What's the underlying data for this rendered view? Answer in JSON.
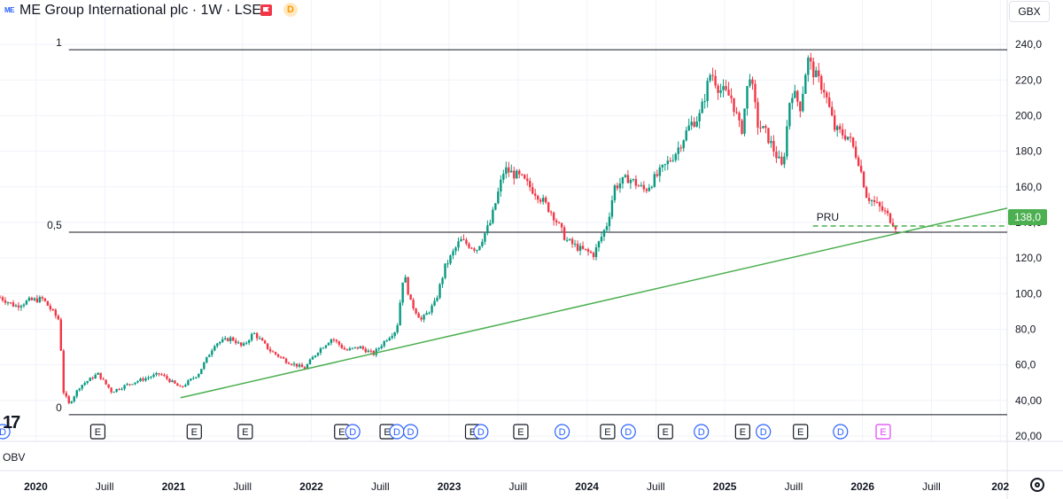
{
  "header": {
    "logo_text": "ME",
    "title": "ME Group International plc · 1W · LSE",
    "dividend_badge": "D",
    "currency": "GBX"
  },
  "indicator_label": "OBV",
  "current_price_label": "138,0",
  "colors": {
    "up": "#089981",
    "down": "#f23645",
    "trendline": "#4caf50",
    "grid": "#f0f3fa",
    "fib_line": "#131722",
    "earnings_marker": "#131722",
    "dividend_marker": "#2962ff",
    "future_earnings": "#e040fb"
  },
  "chart_data": {
    "type": "candlestick",
    "title": "ME Group International plc · 1W · LSE",
    "y_axis": {
      "ticks": [
        240,
        220,
        200,
        180,
        160,
        140,
        120,
        100,
        80,
        60,
        40,
        20
      ],
      "tick_labels": [
        "240,0",
        "220,0",
        "200,0",
        "180,0",
        "160,0",
        "140,0",
        "120,0",
        "100,0",
        "80,0",
        "60,0",
        "40,00",
        "20,00"
      ],
      "ylim": [
        17,
        251
      ]
    },
    "x_axis": {
      "tick_labels": [
        "2020",
        "Juill",
        "2021",
        "Juill",
        "2022",
        "Juill",
        "2023",
        "Juill",
        "2024",
        "Juill",
        "2025",
        "Juill",
        "2026",
        "Juill",
        "202"
      ],
      "tick_dates": [
        2020.0,
        2020.5,
        2021.0,
        2021.5,
        2022.0,
        2022.5,
        2023.0,
        2023.5,
        2024.0,
        2024.5,
        2025.0,
        2025.5,
        2026.0,
        2026.5,
        2027.0
      ],
      "xlim": [
        2019.74,
        2027.05
      ]
    },
    "price_path": [
      {
        "t": 2019.74,
        "p": 98
      },
      {
        "t": 2019.85,
        "p": 93
      },
      {
        "t": 2019.95,
        "p": 96
      },
      {
        "t": 2020.05,
        "p": 97
      },
      {
        "t": 2020.12,
        "p": 90
      },
      {
        "t": 2020.17,
        "p": 85
      },
      {
        "t": 2020.2,
        "p": 45
      },
      {
        "t": 2020.24,
        "p": 38
      },
      {
        "t": 2020.32,
        "p": 48
      },
      {
        "t": 2020.45,
        "p": 55
      },
      {
        "t": 2020.55,
        "p": 45
      },
      {
        "t": 2020.7,
        "p": 50
      },
      {
        "t": 2020.9,
        "p": 55
      },
      {
        "t": 2021.05,
        "p": 47
      },
      {
        "t": 2021.18,
        "p": 55
      },
      {
        "t": 2021.3,
        "p": 72
      },
      {
        "t": 2021.42,
        "p": 75
      },
      {
        "t": 2021.5,
        "p": 70
      },
      {
        "t": 2021.58,
        "p": 78
      },
      {
        "t": 2021.7,
        "p": 68
      },
      {
        "t": 2021.82,
        "p": 62
      },
      {
        "t": 2021.95,
        "p": 58
      },
      {
        "t": 2022.05,
        "p": 68
      },
      {
        "t": 2022.15,
        "p": 75
      },
      {
        "t": 2022.25,
        "p": 68
      },
      {
        "t": 2022.35,
        "p": 70
      },
      {
        "t": 2022.45,
        "p": 66
      },
      {
        "t": 2022.55,
        "p": 75
      },
      {
        "t": 2022.62,
        "p": 80
      },
      {
        "t": 2022.67,
        "p": 112
      },
      {
        "t": 2022.72,
        "p": 95
      },
      {
        "t": 2022.8,
        "p": 85
      },
      {
        "t": 2022.9,
        "p": 95
      },
      {
        "t": 2022.97,
        "p": 115
      },
      {
        "t": 2023.08,
        "p": 130
      },
      {
        "t": 2023.2,
        "p": 125
      },
      {
        "t": 2023.3,
        "p": 140
      },
      {
        "t": 2023.4,
        "p": 170
      },
      {
        "t": 2023.52,
        "p": 165
      },
      {
        "t": 2023.65,
        "p": 155
      },
      {
        "t": 2023.75,
        "p": 145
      },
      {
        "t": 2023.85,
        "p": 130
      },
      {
        "t": 2023.95,
        "p": 125
      },
      {
        "t": 2024.05,
        "p": 122
      },
      {
        "t": 2024.15,
        "p": 140
      },
      {
        "t": 2024.2,
        "p": 160
      },
      {
        "t": 2024.3,
        "p": 165
      },
      {
        "t": 2024.42,
        "p": 158
      },
      {
        "t": 2024.55,
        "p": 170
      },
      {
        "t": 2024.65,
        "p": 180
      },
      {
        "t": 2024.75,
        "p": 195
      },
      {
        "t": 2024.82,
        "p": 200
      },
      {
        "t": 2024.9,
        "p": 225
      },
      {
        "t": 2024.96,
        "p": 215
      },
      {
        "t": 2025.05,
        "p": 210
      },
      {
        "t": 2025.12,
        "p": 190
      },
      {
        "t": 2025.18,
        "p": 225
      },
      {
        "t": 2025.24,
        "p": 195
      },
      {
        "t": 2025.3,
        "p": 190
      },
      {
        "t": 2025.36,
        "p": 180
      },
      {
        "t": 2025.42,
        "p": 170
      },
      {
        "t": 2025.48,
        "p": 215
      },
      {
        "t": 2025.55,
        "p": 205
      },
      {
        "t": 2025.6,
        "p": 232
      },
      {
        "t": 2025.66,
        "p": 222
      },
      {
        "t": 2025.72,
        "p": 215
      },
      {
        "t": 2025.8,
        "p": 192
      },
      {
        "t": 2025.9,
        "p": 188
      },
      {
        "t": 2025.97,
        "p": 175
      },
      {
        "t": 2026.03,
        "p": 155
      },
      {
        "t": 2026.1,
        "p": 150
      },
      {
        "t": 2026.17,
        "p": 145
      },
      {
        "t": 2026.24,
        "p": 138
      }
    ],
    "fibonacci": [
      {
        "level_label": "1",
        "price": 237
      },
      {
        "level_label": "0,5",
        "price": 134.5
      },
      {
        "level_label": "0",
        "price": 32
      }
    ],
    "fib_start_date": 2020.24,
    "trendline": {
      "points": [
        {
          "t": 2021.05,
          "p": 41.5
        },
        {
          "t": 2027.05,
          "p": 148
        }
      ]
    },
    "current_price": 138.0,
    "current_price_label": "138,0",
    "price_annotation": {
      "text": "PRU",
      "t_start": 2025.64,
      "t_end": 2027.05,
      "price": 138.0
    },
    "event_markers": [
      {
        "t": 2019.76,
        "type": "D"
      },
      {
        "t": 2020.45,
        "type": "E"
      },
      {
        "t": 2021.15,
        "type": "E"
      },
      {
        "t": 2021.52,
        "type": "E"
      },
      {
        "t": 2022.22,
        "type": "E"
      },
      {
        "t": 2022.3,
        "type": "D"
      },
      {
        "t": 2022.55,
        "type": "E"
      },
      {
        "t": 2022.62,
        "type": "D"
      },
      {
        "t": 2022.72,
        "type": "D"
      },
      {
        "t": 2023.17,
        "type": "E"
      },
      {
        "t": 2023.23,
        "type": "D"
      },
      {
        "t": 2023.52,
        "type": "E"
      },
      {
        "t": 2023.82,
        "type": "D"
      },
      {
        "t": 2024.15,
        "type": "E"
      },
      {
        "t": 2024.3,
        "type": "D"
      },
      {
        "t": 2024.57,
        "type": "E"
      },
      {
        "t": 2024.83,
        "type": "D"
      },
      {
        "t": 2025.13,
        "type": "E"
      },
      {
        "t": 2025.28,
        "type": "D"
      },
      {
        "t": 2025.55,
        "type": "E"
      },
      {
        "t": 2025.84,
        "type": "D"
      },
      {
        "t": 2026.15,
        "type": "E",
        "future": true
      }
    ],
    "grid": true
  }
}
